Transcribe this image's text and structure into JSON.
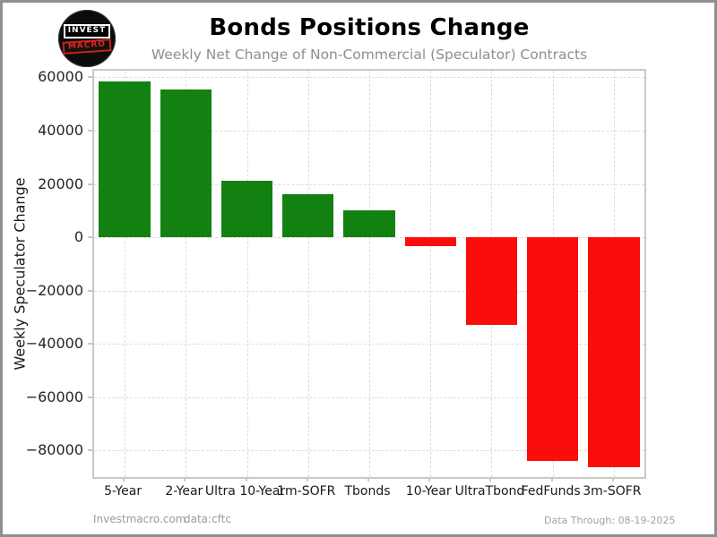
{
  "logo": {
    "line1": "INVEST",
    "line2": "MACRO"
  },
  "chart_data": {
    "type": "bar",
    "title": "Bonds Positions Change",
    "subtitle": "Weekly Net Change of Non-Commercial (Speculator) Contracts",
    "ylabel": "Weekly Speculator Change",
    "xlabel": "",
    "categories": [
      "5-Year",
      "2-Year",
      "Ultra 10-Year",
      "1m-SOFR",
      "Tbonds",
      "10-Year",
      "UltraTbond",
      "FedFunds",
      "3m-SOFR"
    ],
    "values": [
      58500,
      55500,
      21100,
      16100,
      10200,
      -3300,
      -33000,
      -83900,
      -86300
    ],
    "ylim": [
      -90000,
      62500
    ],
    "yticks": [
      60000,
      40000,
      20000,
      0,
      -20000,
      -40000,
      -60000,
      -80000
    ],
    "ytick_labels": [
      "60000",
      "40000",
      "20000",
      "0",
      "−20000",
      "−40000",
      "−60000",
      "−80000"
    ],
    "grid": true,
    "legend_position": "none",
    "bar_width_fraction": 0.84,
    "colors": {
      "positive": "#128112",
      "negative": "#fb0d0c"
    }
  },
  "footer": {
    "site": "Investmacro.com",
    "source": "data:cftc",
    "data_through": "Data Through: 08-19-2025"
  }
}
